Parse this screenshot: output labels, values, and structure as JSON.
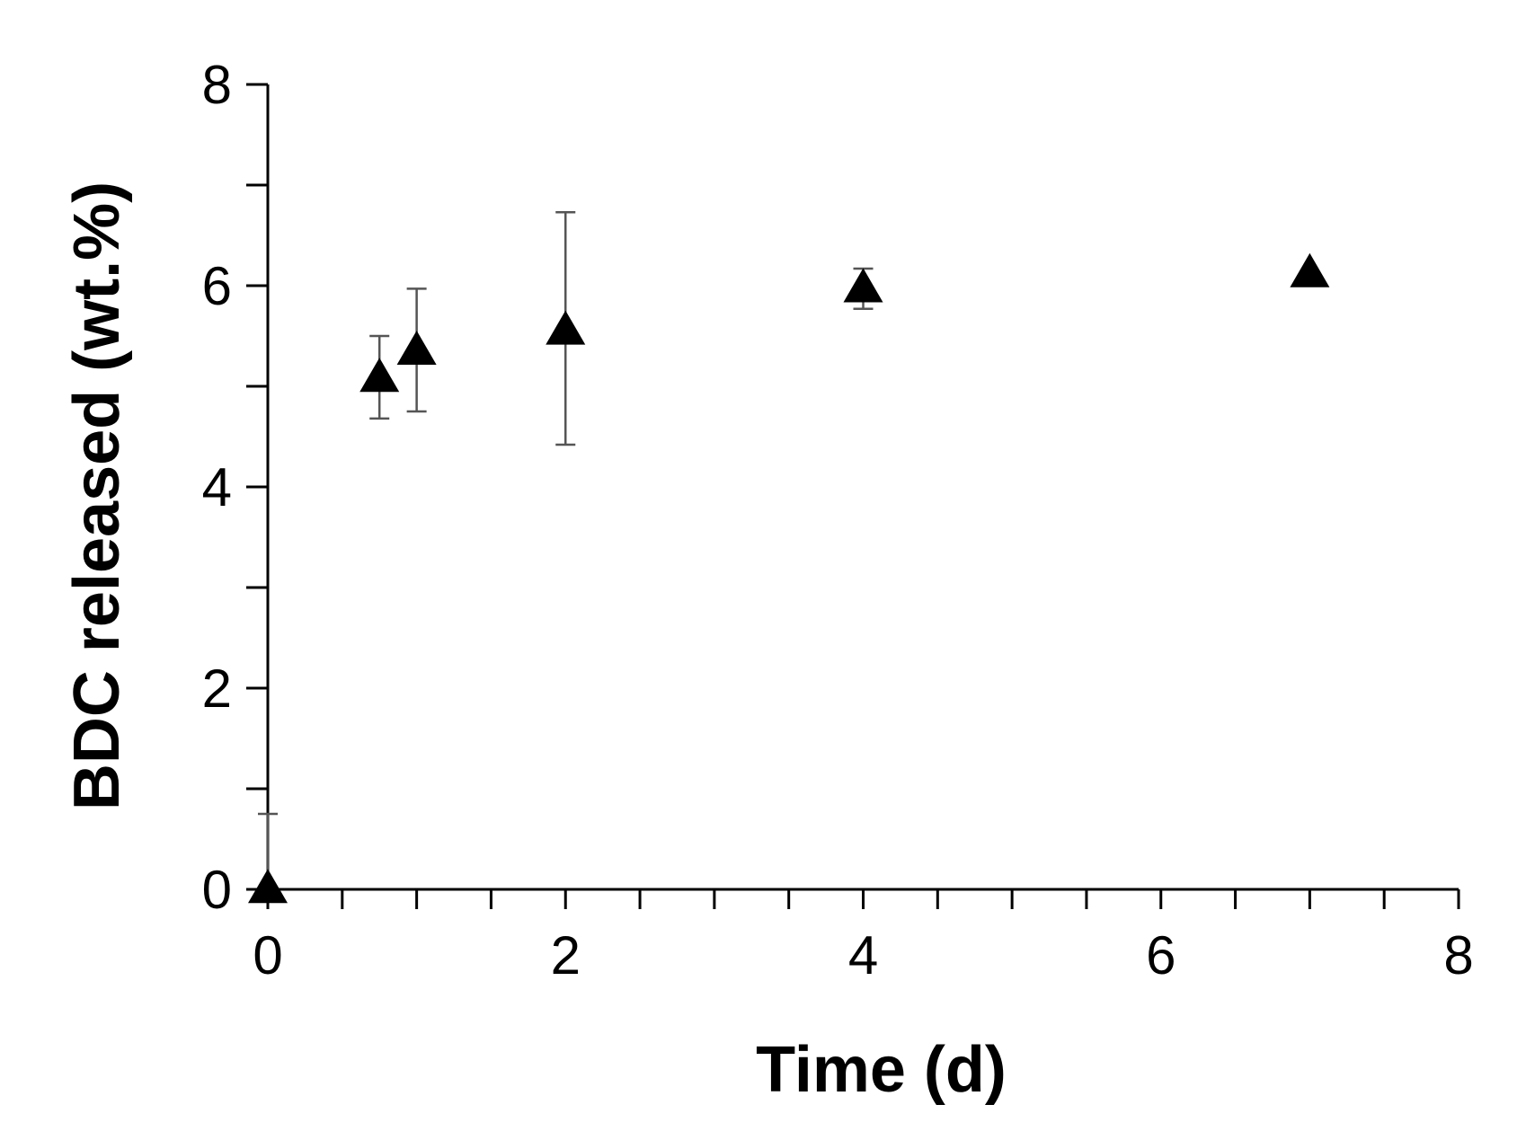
{
  "chart_data": {
    "type": "scatter",
    "title": "",
    "xlabel": "Time (d)",
    "ylabel": "BDC released  (wt.%)",
    "xlim": [
      0,
      8
    ],
    "ylim": [
      0,
      8
    ],
    "x_major_ticks": [
      0,
      2,
      4,
      6,
      8
    ],
    "x_minor_step": 0.5,
    "y_major_ticks": [
      0,
      2,
      4,
      6,
      8
    ],
    "y_minor_step": 1,
    "grid": false,
    "legend": "none",
    "marker": "triangle",
    "marker_color": "#000000",
    "errorbar_color": "#555555",
    "series": [
      {
        "points": [
          {
            "x": 0,
            "y": 0,
            "err_low": 0,
            "err_high": 0.75
          },
          {
            "x": 0.75,
            "y": 5.08,
            "err_low": 0.4,
            "err_high": 0.42
          },
          {
            "x": 1,
            "y": 5.35,
            "err_low": 0.6,
            "err_high": 0.62
          },
          {
            "x": 2,
            "y": 5.55,
            "err_low": 1.13,
            "err_high": 1.18
          },
          {
            "x": 4,
            "y": 5.97,
            "err_low": 0.2,
            "err_high": 0.2
          },
          {
            "x": 7,
            "y": 6.12,
            "err_low": 0,
            "err_high": 0
          }
        ]
      }
    ]
  }
}
